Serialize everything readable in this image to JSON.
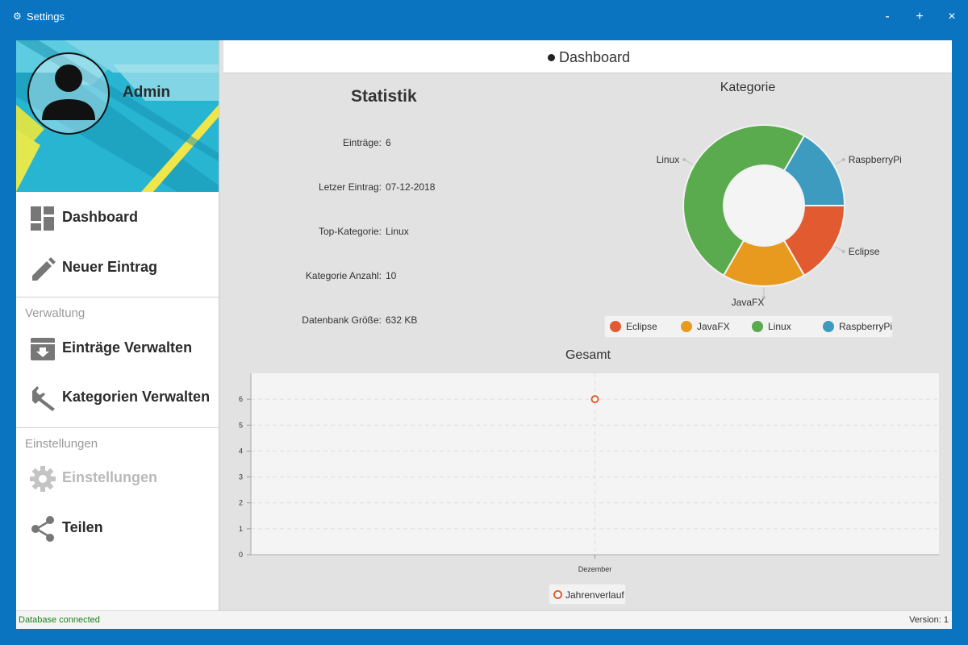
{
  "window": {
    "title": "Settings",
    "icon": "gear-icon",
    "controls": {
      "minimize": "-",
      "maximize": "+",
      "close": "×"
    }
  },
  "sidebar": {
    "user_name": "Admin",
    "items": [
      {
        "label": "Dashboard",
        "icon": "dashboard-icon"
      },
      {
        "label": "Neuer Eintrag",
        "icon": "pencil-icon"
      }
    ],
    "sections": [
      {
        "label": "Verwaltung",
        "items": [
          {
            "label": "Einträge Verwalten",
            "icon": "archive-icon"
          },
          {
            "label": "Kategorien Verwalten",
            "icon": "wrench-icon"
          }
        ]
      },
      {
        "label": "Einstellungen",
        "items": [
          {
            "label": "Einstellungen",
            "icon": "gear-icon",
            "disabled": true
          },
          {
            "label": "Teilen",
            "icon": "share-icon"
          }
        ]
      }
    ]
  },
  "main": {
    "header": "Dashboard",
    "statistik": {
      "title": "Statistik",
      "rows": [
        {
          "key": "Einträge:",
          "value": "6"
        },
        {
          "key": "Letzer Eintrag:",
          "value": "07-12-2018"
        },
        {
          "key": "Top-Kategorie:",
          "value": "Linux"
        },
        {
          "key": "Kategorie Anzahl:",
          "value": "10"
        },
        {
          "key": "Datenbank Größe:",
          "value": "632 KB"
        }
      ]
    }
  },
  "chart_data": [
    {
      "type": "pie",
      "title": "Kategorie",
      "donut": true,
      "slices": [
        {
          "label": "Eclipse",
          "value": 1,
          "color": "#e25b30"
        },
        {
          "label": "JavaFX",
          "value": 1,
          "color": "#e89a1f"
        },
        {
          "label": "Linux",
          "value": 3,
          "color": "#5aaa4e"
        },
        {
          "label": "RaspberryPi",
          "value": 1,
          "color": "#3d9bbf"
        }
      ],
      "legend": "bottom"
    },
    {
      "type": "line",
      "title": "Gesamt",
      "categories": [
        "Dezember"
      ],
      "series": [
        {
          "name": "Jahrenverlauf",
          "values": [
            6
          ],
          "color": "#e25b30"
        }
      ],
      "yticks": [
        "0",
        "1",
        "2",
        "3",
        "4",
        "5",
        "6"
      ],
      "ylim": [
        0,
        7
      ],
      "grid": true,
      "legend": "bottom"
    }
  ],
  "status": {
    "left": "Database connected",
    "right": "Version: 1"
  }
}
